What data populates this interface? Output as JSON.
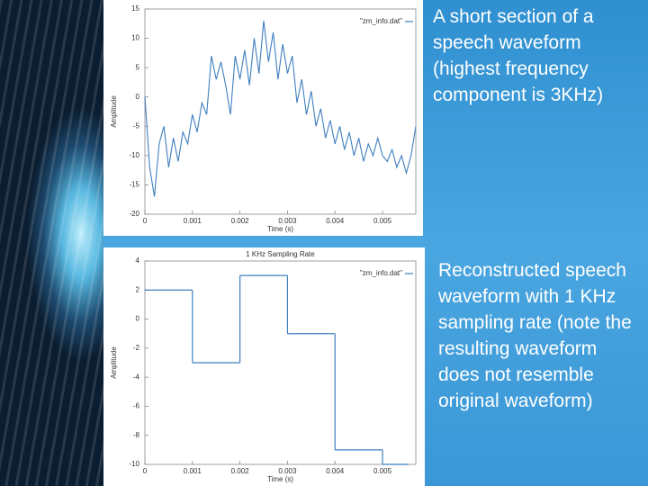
{
  "chart_data": [
    {
      "type": "line",
      "caption": "A short section of a speech waveform (highest frequency component is 3KHz)",
      "x_label": "Time (s)",
      "y_label": "Amplitude",
      "x": [
        0,
        0.0001,
        0.0002,
        0.0003,
        0.0004,
        0.0005,
        0.0006,
        0.0007,
        0.0008,
        0.0009,
        0.001,
        0.0011,
        0.0012,
        0.0013,
        0.0014,
        0.0015,
        0.0016,
        0.0017,
        0.0018,
        0.0019,
        0.002,
        0.0021,
        0.0022,
        0.0023,
        0.0024,
        0.0025,
        0.0026,
        0.0027,
        0.0028,
        0.0029,
        0.003,
        0.0031,
        0.0032,
        0.0033,
        0.0034,
        0.0035,
        0.0036,
        0.0037,
        0.0038,
        0.0039,
        0.004,
        0.0041,
        0.0042,
        0.0043,
        0.0044,
        0.0045,
        0.0046,
        0.0047,
        0.0048,
        0.0049,
        0.005,
        0.0051,
        0.0052,
        0.0053,
        0.0054,
        0.0055,
        0.0056,
        0.0057
      ],
      "series": [
        {
          "name": "\"zm_info.dat\"",
          "color": "#3f7fbf",
          "values": [
            0,
            -12,
            -17,
            -8,
            -5,
            -12,
            -7,
            -11,
            -6,
            -8,
            -3,
            -6,
            -1,
            -3,
            7,
            3,
            6,
            2,
            -3,
            7,
            3,
            8,
            2,
            10,
            4,
            13,
            6,
            11,
            3,
            9,
            4,
            7,
            -1,
            3,
            -3,
            1,
            -5,
            -2,
            -7,
            -4,
            -8,
            -5,
            -9,
            -6,
            -10,
            -7,
            -11,
            -8,
            -10,
            -7,
            -10,
            -11,
            -9,
            -12,
            -10,
            -13,
            -10,
            -5
          ]
        }
      ],
      "xlim": [
        0,
        0.0057
      ],
      "xticks": [
        0,
        0.001,
        0.002,
        0.003,
        0.004,
        0.005
      ],
      "ylim": [
        -20,
        15
      ],
      "yticks": [
        -20,
        -15,
        -10,
        -5,
        0,
        5,
        10,
        15
      ],
      "legend": "upper right"
    },
    {
      "type": "step",
      "title": "1 KHz Sampling Rate",
      "caption": "Reconstructed speech waveform with 1 KHz sampling rate (note the resulting waveform does not resemble original waveform)",
      "x_label": "Time (s)",
      "y_label": "Amplitude",
      "x": [
        0,
        0.001,
        0.002,
        0.003,
        0.004,
        0.005
      ],
      "series": [
        {
          "name": "\"zm_info.dat\"",
          "color": "#3f7fbf",
          "values": [
            2,
            -3,
            3,
            -1,
            -9,
            -10
          ]
        }
      ],
      "xlim": [
        0,
        0.0057
      ],
      "xticks": [
        0,
        0.001,
        0.002,
        0.003,
        0.004,
        0.005
      ],
      "ylim": [
        -10,
        4
      ],
      "yticks": [
        -10,
        -8,
        -6,
        -4,
        -2,
        0,
        2,
        4
      ],
      "legend": "upper right"
    }
  ]
}
